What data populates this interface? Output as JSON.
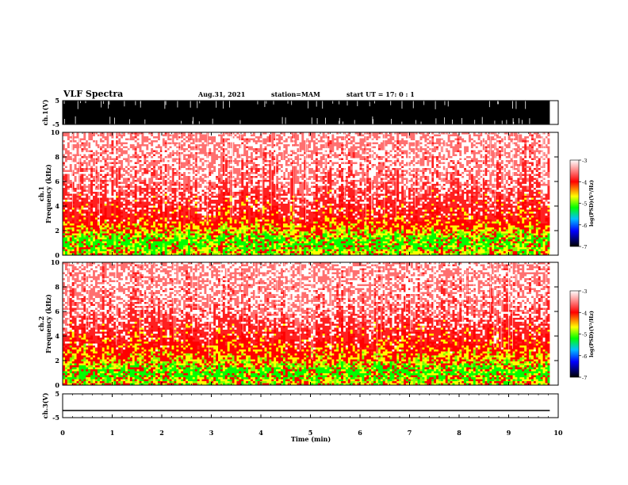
{
  "header": {
    "title": "VLF Spectra",
    "date": "Aug.31, 2021",
    "station": "station=MAM",
    "start": "start  UT =  17: 0  : 1"
  },
  "colors": {
    "spec_high": "#ff0000",
    "spec_mid": "#ffff00",
    "spec_low": "#00ff00",
    "background": "#ffffff"
  },
  "chart_data": [
    {
      "type": "line",
      "name": "waveform-ch1",
      "ylabel": "ch.1(V)",
      "ylim": [
        -5,
        5
      ],
      "yticks": [
        5,
        -5
      ],
      "xlim": [
        0,
        10
      ],
      "envelope_min": -5,
      "envelope_max": 5,
      "end_time_min": 9.83
    },
    {
      "type": "heatmap",
      "name": "spectrogram-ch1",
      "ylabel_top": "ch.1",
      "ylabel": "Frequency (kHz)",
      "ylim": [
        0,
        10
      ],
      "yticks": [
        0,
        2,
        4,
        6,
        8,
        10
      ],
      "xlim": [
        0,
        10
      ],
      "end_time_min": 9.83,
      "profile": [
        {
          "f_khz": 0.3,
          "level": -4.5
        },
        {
          "f_khz": 1.0,
          "level": -5.0
        },
        {
          "f_khz": 2.0,
          "level": -4.3
        },
        {
          "f_khz": 3.0,
          "level": -3.8
        },
        {
          "f_khz": 6.0,
          "level": -3.3
        },
        {
          "f_khz": 10.0,
          "level": -3.0
        }
      ],
      "colorbar": {
        "label": "log(PSD)(V²/Hz)",
        "range": [
          -7,
          -3
        ],
        "ticks": [
          -3,
          -4,
          -5,
          -6,
          -7
        ]
      }
    },
    {
      "type": "heatmap",
      "name": "spectrogram-ch2",
      "ylabel_top": "ch.2",
      "ylabel": "Frequency (kHz)",
      "ylim": [
        0,
        10
      ],
      "yticks": [
        0,
        2,
        4,
        6,
        8,
        10
      ],
      "xlim": [
        0,
        10
      ],
      "end_time_min": 9.83,
      "profile": [
        {
          "f_khz": 0.3,
          "level": -4.5
        },
        {
          "f_khz": 1.0,
          "level": -5.0
        },
        {
          "f_khz": 2.0,
          "level": -4.3
        },
        {
          "f_khz": 3.5,
          "level": -3.8
        },
        {
          "f_khz": 6.0,
          "level": -3.3
        },
        {
          "f_khz": 10.0,
          "level": -3.0
        }
      ],
      "colorbar": {
        "label": "log(PSD)(V²/Hz)",
        "range": [
          -7,
          -3
        ],
        "ticks": [
          -3,
          -4,
          -5,
          -6,
          -7
        ]
      }
    },
    {
      "type": "line",
      "name": "waveform-ch3",
      "ylabel": "ch.3(V)",
      "ylim": [
        -5,
        5
      ],
      "yticks": [
        5,
        -5
      ],
      "xlim": [
        0,
        10
      ],
      "value": -2.0,
      "end_time_min": 9.83
    }
  ],
  "xaxis": {
    "label": "Time (min)",
    "ticks": [
      0,
      1,
      2,
      3,
      4,
      5,
      6,
      7,
      8,
      9,
      10
    ]
  }
}
